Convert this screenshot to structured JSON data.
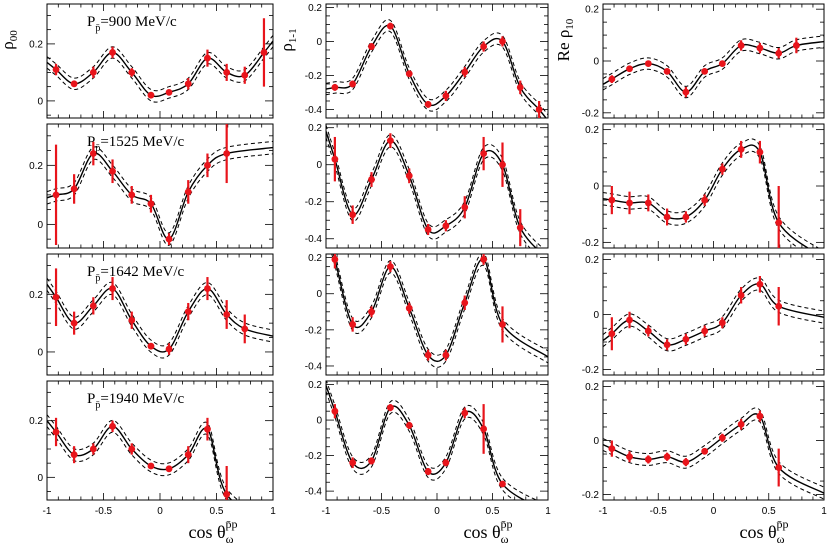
{
  "chart_data": {
    "type": "scatter",
    "x": [
      -0.92,
      -0.76,
      -0.59,
      -0.42,
      -0.25,
      -0.08,
      0.08,
      0.25,
      0.42,
      0.59,
      0.75,
      0.92
    ],
    "xlim": [
      -1,
      1
    ],
    "xticks": [
      "-1",
      "-0.5",
      "0",
      "0.5",
      "1"
    ],
    "xlabel": "cos θ",
    "xlabel_sub": "ω",
    "xlabel_sup": "p̄p",
    "columns": [
      {
        "ylabel_main": "ρ",
        "ylabel_sub": "00",
        "yticks": [
          [
            "0.2",
            0.2
          ],
          [
            "0",
            0.0
          ]
        ],
        "ylims": [
          [
            -0.06,
            0.34
          ],
          [
            -0.08,
            0.34
          ],
          [
            -0.08,
            0.34
          ],
          [
            -0.08,
            0.34
          ]
        ],
        "data": [
          {
            "y": [
              0.11,
              0.06,
              0.1,
              0.17,
              0.1,
              0.02,
              0.03,
              0.06,
              0.15,
              0.1,
              0.09,
              0.17
            ],
            "err": [
              0.02,
              0.01,
              0.02,
              0.02,
              0.015,
              0.01,
              0.01,
              0.02,
              0.03,
              0.03,
              0.03,
              0.12
            ]
          },
          {
            "y": [
              0.1,
              0.12,
              0.24,
              0.18,
              0.1,
              0.07,
              -0.05,
              0.11,
              0.2,
              0.24,
              null,
              null
            ],
            "err": [
              0.17,
              0.05,
              0.04,
              0.04,
              0.03,
              0.03,
              0.02,
              0.04,
              0.04,
              0.1,
              null,
              null
            ]
          },
          {
            "y": [
              0.19,
              0.1,
              0.16,
              0.22,
              0.11,
              0.02,
              0.01,
              0.14,
              0.22,
              0.13,
              0.08,
              null
            ],
            "err": [
              0.1,
              0.04,
              0.03,
              0.04,
              0.03,
              0.01,
              0.02,
              0.03,
              0.04,
              0.05,
              0.05,
              null
            ]
          },
          {
            "y": [
              0.16,
              0.08,
              0.1,
              0.18,
              0.1,
              0.04,
              0.03,
              0.08,
              0.17,
              -0.06,
              null,
              null
            ],
            "err": [
              0.05,
              0.03,
              0.02,
              0.02,
              0.02,
              0.01,
              0.01,
              0.03,
              0.04,
              0.1,
              null,
              null
            ]
          }
        ]
      },
      {
        "ylabel_main": "ρ",
        "ylabel_sub": "1-1",
        "yticks": [
          [
            "0.2",
            0.2
          ],
          [
            "0",
            0.0
          ],
          [
            "-0.2",
            -0.2
          ],
          [
            "-0.4",
            -0.4
          ]
        ],
        "ylims": [
          [
            -0.45,
            0.22
          ],
          [
            -0.45,
            0.22
          ],
          [
            -0.45,
            0.22
          ],
          [
            -0.45,
            0.22
          ]
        ],
        "data": [
          {
            "y": [
              -0.27,
              -0.25,
              -0.03,
              0.09,
              -0.19,
              -0.37,
              -0.32,
              -0.18,
              -0.03,
              0.0,
              -0.27,
              -0.4
            ],
            "err": [
              0.02,
              0.02,
              0.02,
              0.02,
              0.02,
              0.02,
              0.03,
              0.03,
              0.03,
              0.03,
              0.04,
              0.05
            ]
          },
          {
            "y": [
              0.03,
              -0.27,
              -0.08,
              0.13,
              -0.06,
              -0.35,
              -0.33,
              -0.23,
              0.06,
              0.0,
              -0.34,
              null
            ],
            "err": [
              0.12,
              0.05,
              0.04,
              0.04,
              0.04,
              0.03,
              0.03,
              0.06,
              0.09,
              0.12,
              0.1,
              null
            ]
          },
          {
            "y": [
              0.19,
              -0.17,
              -0.1,
              0.15,
              -0.08,
              -0.34,
              -0.34,
              -0.05,
              0.19,
              -0.17,
              null,
              null
            ],
            "err": [
              0.05,
              0.04,
              0.03,
              0.03,
              0.03,
              0.03,
              0.03,
              0.04,
              0.03,
              0.1,
              null,
              null
            ]
          },
          {
            "y": [
              0.05,
              -0.24,
              -0.23,
              0.07,
              -0.03,
              -0.29,
              -0.24,
              0.04,
              -0.05,
              -0.36,
              null,
              null
            ],
            "err": [
              0.04,
              0.03,
              0.02,
              0.02,
              0.02,
              0.02,
              0.02,
              0.03,
              0.14,
              0.01,
              null,
              null
            ]
          }
        ]
      },
      {
        "ylabel_main": "Re ρ",
        "ylabel_sub": "10",
        "yticks": [
          [
            "0.2",
            0.2
          ],
          [
            "0",
            0.0
          ],
          [
            "-0.2",
            -0.2
          ]
        ],
        "ylims": [
          [
            -0.22,
            0.22
          ],
          [
            -0.22,
            0.22
          ],
          [
            -0.22,
            0.22
          ],
          [
            -0.22,
            0.22
          ]
        ],
        "data": [
          {
            "y": [
              -0.07,
              -0.03,
              -0.01,
              -0.04,
              -0.12,
              -0.04,
              -0.01,
              0.06,
              0.05,
              0.03,
              0.06,
              null
            ],
            "err": [
              0.015,
              0.01,
              0.01,
              0.01,
              0.02,
              0.01,
              0.01,
              0.02,
              0.02,
              0.02,
              0.03,
              null
            ]
          },
          {
            "y": [
              -0.05,
              -0.06,
              -0.06,
              -0.11,
              -0.11,
              -0.05,
              0.06,
              0.13,
              0.12,
              -0.13,
              null,
              null
            ],
            "err": [
              0.05,
              0.04,
              0.03,
              0.03,
              0.02,
              0.02,
              0.02,
              0.03,
              0.04,
              0.13,
              null,
              null
            ]
          },
          {
            "y": [
              -0.07,
              -0.02,
              -0.06,
              -0.11,
              -0.09,
              -0.06,
              -0.03,
              0.07,
              0.11,
              0.03,
              null,
              null
            ],
            "err": [
              0.06,
              0.03,
              0.02,
              0.02,
              0.02,
              0.02,
              0.02,
              0.03,
              0.03,
              0.07,
              null,
              null
            ]
          },
          {
            "y": [
              -0.03,
              -0.06,
              -0.07,
              -0.06,
              -0.08,
              -0.04,
              0.01,
              0.06,
              0.09,
              -0.1,
              null,
              null
            ],
            "err": [
              0.03,
              0.02,
              0.015,
              0.015,
              0.015,
              0.01,
              0.015,
              0.02,
              0.02,
              0.07,
              null,
              null
            ]
          }
        ]
      }
    ],
    "rows": [
      {
        "label_prefix": "P",
        "label_value": "=900 MeV/c"
      },
      {
        "label_prefix": "P",
        "label_value": "=1525 MeV/c"
      },
      {
        "label_prefix": "P",
        "label_value": "=1642 MeV/c"
      },
      {
        "label_prefix": "P",
        "label_value": "=1940 MeV/c"
      }
    ],
    "label_sub": "p̄",
    "series": [
      {
        "name": "data",
        "style": "red points with error bars",
        "color": "#e8141b"
      },
      {
        "name": "fit",
        "style": "solid black line",
        "color": "#000000"
      },
      {
        "name": "fit band",
        "style": "dashed black lines",
        "color": "#000000"
      }
    ]
  }
}
